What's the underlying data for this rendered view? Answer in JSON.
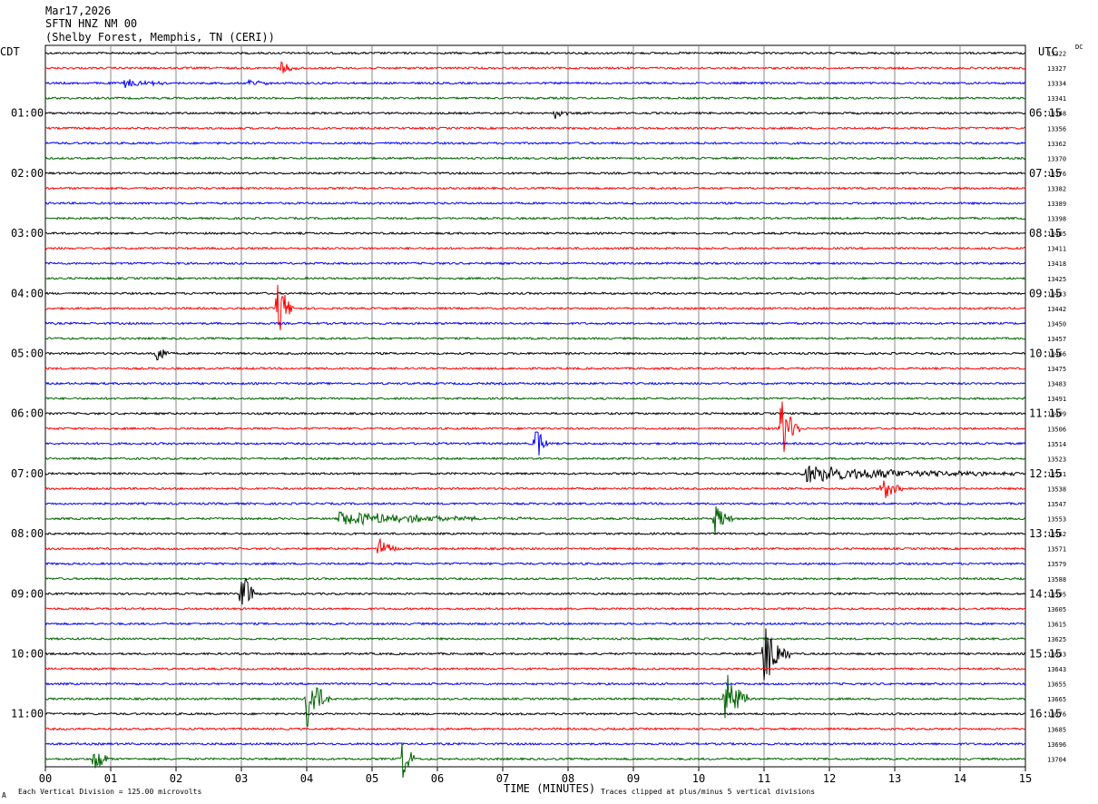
{
  "header": {
    "date": "Mar17,2026",
    "station": "SFTN HNZ NM 00",
    "location": "(Shelby Forest, Memphis, TN (CERI))"
  },
  "left_tz": "CDT",
  "right_tz": "UTC",
  "dc_label": "DC",
  "footer": {
    "scale": "Each Vertical Division = 125.00 microvolts",
    "xlabel": "TIME (MINUTES)",
    "clip": "Traces clipped at plus/minus 5 vertical divisions",
    "corner": "A"
  },
  "colors": {
    "cycle": [
      "#000000",
      "#ff0000",
      "#0000ff",
      "#006400"
    ]
  },
  "chart_data": {
    "type": "line",
    "title": "SFTN HNZ NM 00",
    "xlabel": "TIME (MINUTES)",
    "x_ticks": [
      "00",
      "01",
      "02",
      "03",
      "04",
      "05",
      "06",
      "07",
      "08",
      "09",
      "10",
      "11",
      "12",
      "13",
      "14",
      "15"
    ],
    "xlim": [
      0,
      15
    ],
    "trace_count": 48,
    "left_hour_labels": [
      "01:00",
      "02:00",
      "03:00",
      "04:00",
      "05:00",
      "06:00",
      "07:00",
      "08:00",
      "09:00",
      "10:00",
      "11:00"
    ],
    "right_hour_labels": [
      "06:15",
      "07:15",
      "08:15",
      "09:15",
      "10:15",
      "11:15",
      "12:15",
      "13:15",
      "14:15",
      "15:15",
      "16:15"
    ],
    "dc_offsets": [
      13322,
      13327,
      13334,
      13341,
      13348,
      13356,
      13362,
      13370,
      13376,
      13382,
      13389,
      13398,
      13405,
      13411,
      13418,
      13425,
      13433,
      13442,
      13450,
      13457,
      13466,
      13475,
      13483,
      13491,
      13499,
      13506,
      13514,
      13523,
      13531,
      13538,
      13547,
      13553,
      13562,
      13571,
      13579,
      13588,
      13595,
      13605,
      13615,
      13625,
      13633,
      13643,
      13655,
      13665,
      13676,
      13685,
      13696,
      13704
    ],
    "events": [
      {
        "trace": 1,
        "minute": 3.6,
        "amp": 9,
        "dur": 0.3
      },
      {
        "trace": 2,
        "minute": 1.2,
        "amp": 5,
        "dur": 0.8
      },
      {
        "trace": 2,
        "minute": 3.1,
        "amp": 5,
        "dur": 0.4
      },
      {
        "trace": 4,
        "minute": 7.8,
        "amp": 8,
        "dur": 0.2
      },
      {
        "trace": 17,
        "minute": 3.55,
        "amp": 40,
        "dur": 0.25
      },
      {
        "trace": 20,
        "minute": 1.7,
        "amp": 16,
        "dur": 0.2
      },
      {
        "trace": 25,
        "minute": 11.25,
        "amp": 40,
        "dur": 0.3
      },
      {
        "trace": 26,
        "minute": 7.5,
        "amp": 20,
        "dur": 0.25
      },
      {
        "trace": 28,
        "minute": 11.6,
        "amp": 10,
        "dur": 3.4
      },
      {
        "trace": 29,
        "minute": 12.8,
        "amp": 16,
        "dur": 0.35
      },
      {
        "trace": 31,
        "minute": 4.5,
        "amp": 8,
        "dur": 3.0
      },
      {
        "trace": 31,
        "minute": 10.25,
        "amp": 20,
        "dur": 0.3
      },
      {
        "trace": 33,
        "minute": 5.1,
        "amp": 16,
        "dur": 0.3
      },
      {
        "trace": 36,
        "minute": 3.0,
        "amp": 36,
        "dur": 0.2
      },
      {
        "trace": 40,
        "minute": 11.0,
        "amp": 40,
        "dur": 0.4
      },
      {
        "trace": 43,
        "minute": 4.0,
        "amp": 40,
        "dur": 0.35
      },
      {
        "trace": 43,
        "minute": 10.4,
        "amp": 40,
        "dur": 0.35
      },
      {
        "trace": 47,
        "minute": 0.75,
        "amp": 24,
        "dur": 0.2
      },
      {
        "trace": 47,
        "minute": 5.45,
        "amp": 30,
        "dur": 0.2
      }
    ]
  }
}
